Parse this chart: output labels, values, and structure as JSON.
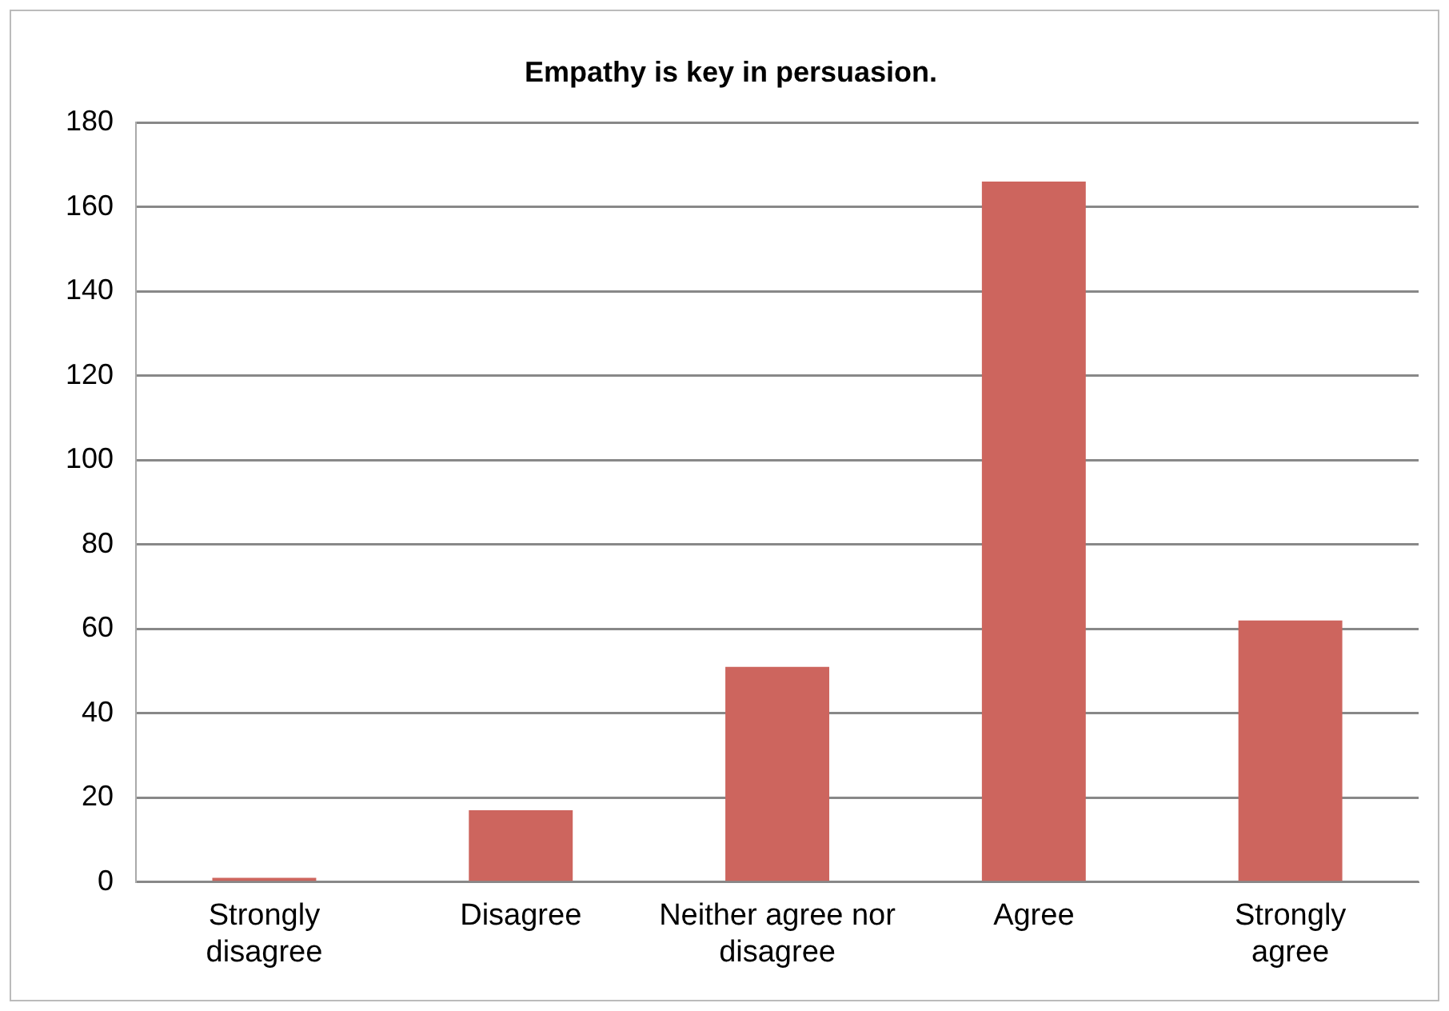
{
  "chart_data": {
    "type": "bar",
    "title": "Empathy is key in persuasion.",
    "categories": [
      "Strongly disagree",
      "Disagree",
      "Neither agree nor disagree",
      "Agree",
      "Strongly agree"
    ],
    "values": [
      1,
      17,
      51,
      166,
      62
    ],
    "color": "#cd655e",
    "ylim": [
      0,
      180
    ],
    "yticks": [
      0,
      20,
      40,
      60,
      80,
      100,
      120,
      140,
      160,
      180
    ],
    "grid": "y",
    "legend": false
  }
}
